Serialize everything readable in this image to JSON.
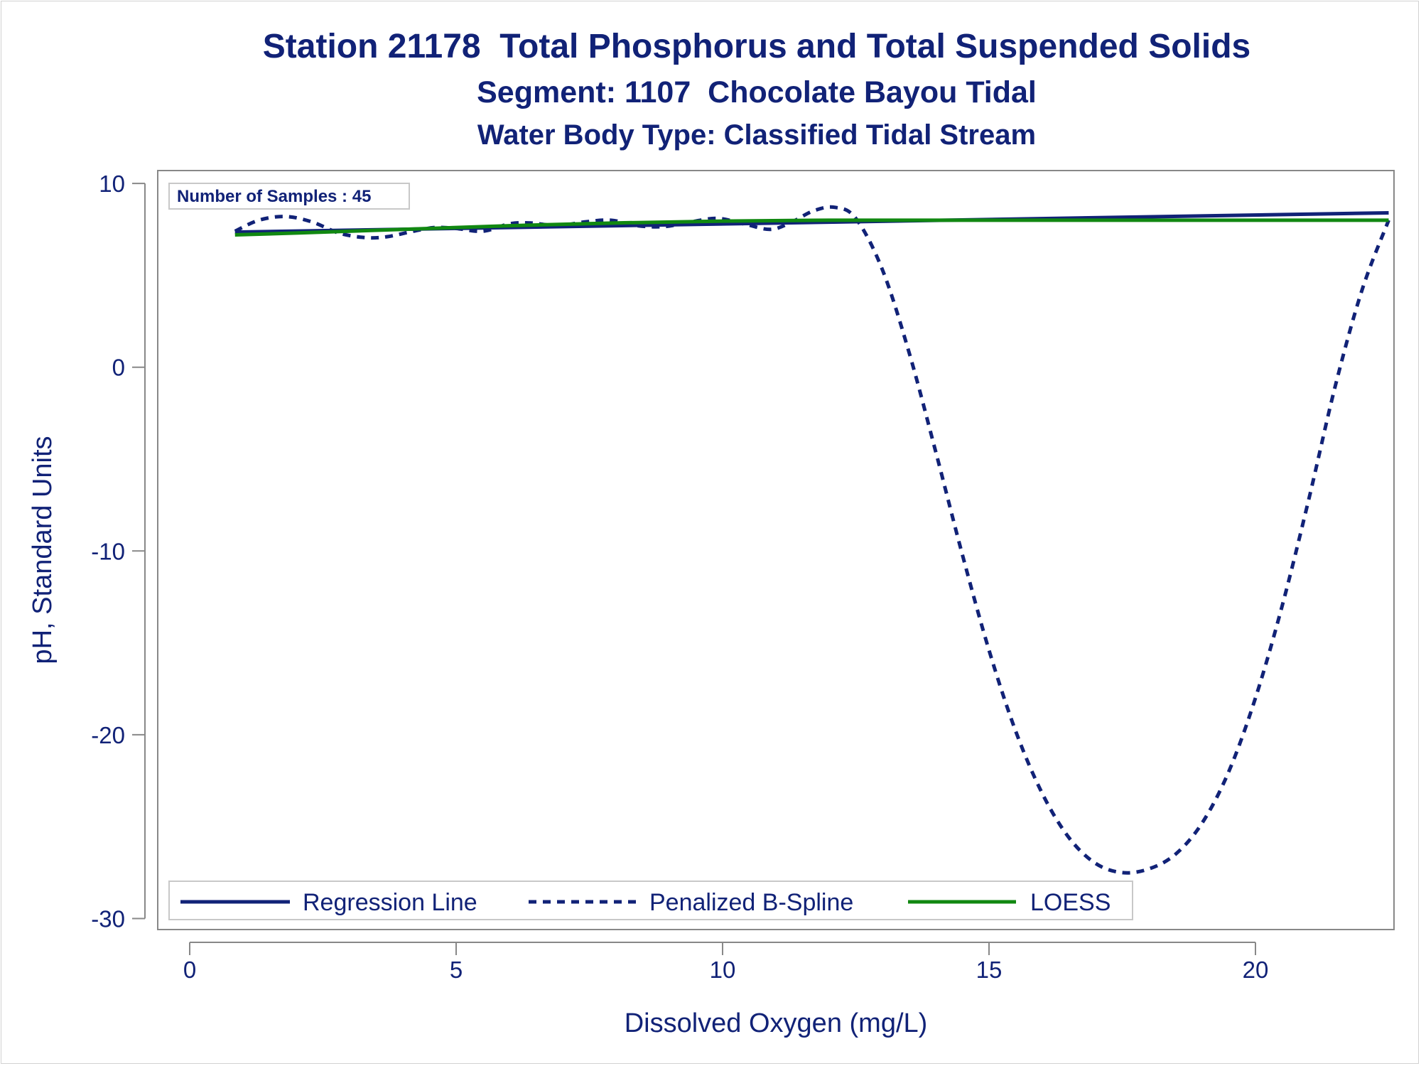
{
  "title": "Station 21178  Total Phosphorus and Total Suspended Solids",
  "subtitle": "Segment: 1107  Chocolate Bayou Tidal",
  "subtitle2": "Water Body Type: Classified Tidal Stream",
  "inset_label": "Number of Samples : 45",
  "colors": {
    "regression": "#112277",
    "spline": "#112277",
    "loess": "#118811",
    "text": "#112277",
    "axis": "#888888"
  },
  "chart_data": {
    "type": "line",
    "xlabel": "Dissolved Oxygen (mg/L)",
    "ylabel": "pH, Standard Units",
    "xlim": [
      -0.6,
      22.6
    ],
    "ylim": [
      -30.6,
      10.7
    ],
    "xticks": [
      0,
      5,
      10,
      15,
      20
    ],
    "yticks": [
      10,
      0,
      -10,
      -20,
      -30
    ],
    "grid": false,
    "legend_position": "bottom-left",
    "series": [
      {
        "name": "Regression Line",
        "style": "solid",
        "x": [
          0.85,
          22.5
        ],
        "y": [
          7.35,
          8.4
        ]
      },
      {
        "name": "Penalized B-Spline",
        "style": "dashed",
        "x": [
          0.85,
          1.3,
          1.8,
          2.3,
          2.8,
          3.3,
          3.7,
          4.2,
          4.6,
          5.0,
          5.5,
          6.0,
          6.4,
          6.9,
          7.4,
          7.9,
          8.4,
          8.9,
          9.4,
          9.9,
          10.4,
          10.9,
          11.3,
          11.7,
          12.1,
          12.5,
          13.0,
          13.5,
          14.0,
          14.5,
          15.0,
          15.5,
          16.0,
          16.5,
          17.0,
          17.5,
          18.0,
          18.5,
          19.0,
          19.5,
          20.0,
          20.5,
          21.0,
          21.5,
          22.0,
          22.5
        ],
        "y": [
          7.4,
          8.0,
          8.2,
          7.9,
          7.3,
          7.05,
          7.1,
          7.4,
          7.6,
          7.55,
          7.4,
          7.8,
          7.85,
          7.7,
          7.9,
          8.0,
          7.7,
          7.65,
          7.9,
          8.1,
          7.8,
          7.5,
          7.9,
          8.5,
          8.7,
          8.1,
          5.3,
          0.8,
          -4.6,
          -10.2,
          -15.4,
          -19.8,
          -23.2,
          -25.6,
          -27.0,
          -27.5,
          -27.3,
          -26.5,
          -24.8,
          -22.0,
          -18.0,
          -13.0,
          -7.2,
          -1.0,
          4.2,
          8.0
        ]
      },
      {
        "name": "LOESS",
        "style": "solid",
        "x": [
          0.85,
          2.0,
          4.0,
          6.0,
          8.0,
          10.0,
          12.0,
          14.0,
          16.0,
          18.0,
          20.0,
          22.5
        ],
        "y": [
          7.2,
          7.3,
          7.5,
          7.7,
          7.85,
          7.95,
          8.0,
          8.0,
          8.0,
          8.0,
          8.0,
          8.0
        ]
      }
    ]
  }
}
